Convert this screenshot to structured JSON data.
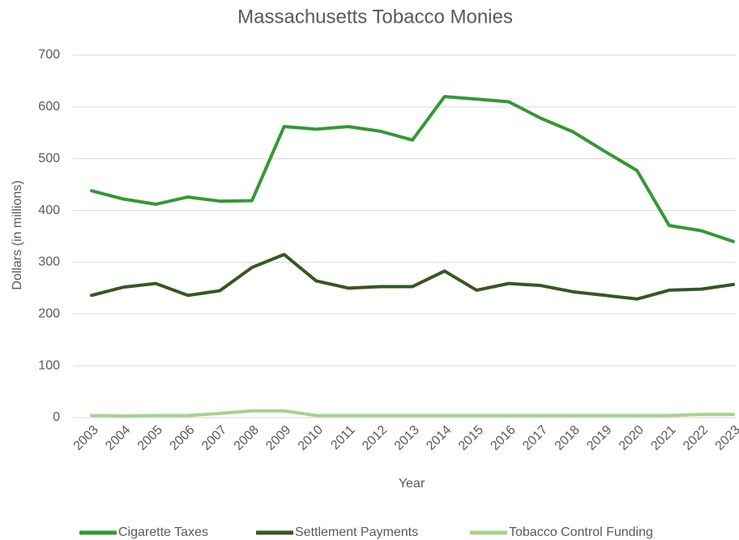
{
  "chart_data": {
    "type": "line",
    "title": "Massachusetts Tobacco Monies",
    "x_label": "Year",
    "y_label": "Dollars (in millions)",
    "categories": [
      "2003",
      "2004",
      "2005",
      "2006",
      "2007",
      "2008",
      "2009",
      "2010",
      "2011",
      "2012",
      "2013",
      "2014",
      "2015",
      "2016",
      "2017",
      "2018",
      "2019",
      "2020",
      "2021",
      "2022",
      "2023"
    ],
    "series": [
      {
        "name": "Cigarette Taxes",
        "color": "#339933",
        "values": [
          438,
          422,
          412,
          426,
          418,
          419,
          562,
          557,
          562,
          553,
          536,
          620,
          615,
          610,
          578,
          552,
          514,
          477,
          371,
          361,
          340
        ]
      },
      {
        "name": "Settlement Payments",
        "color": "#375623",
        "values": [
          236,
          252,
          259,
          236,
          245,
          290,
          315,
          264,
          250,
          253,
          253,
          283,
          246,
          259,
          255,
          243,
          236,
          229,
          246,
          248,
          257
        ]
      },
      {
        "name": "Tobacco Control Funding",
        "color": "#a9d18e",
        "values": [
          4,
          3,
          4,
          4,
          8,
          13,
          13,
          4,
          4,
          4,
          4,
          4,
          4,
          4,
          4,
          4,
          4,
          4,
          4,
          6,
          6
        ]
      }
    ],
    "ylim": [
      0,
      700
    ],
    "yticks": [
      0,
      100,
      200,
      300,
      400,
      500,
      600,
      700
    ],
    "grid": true,
    "legend": "bottom"
  }
}
